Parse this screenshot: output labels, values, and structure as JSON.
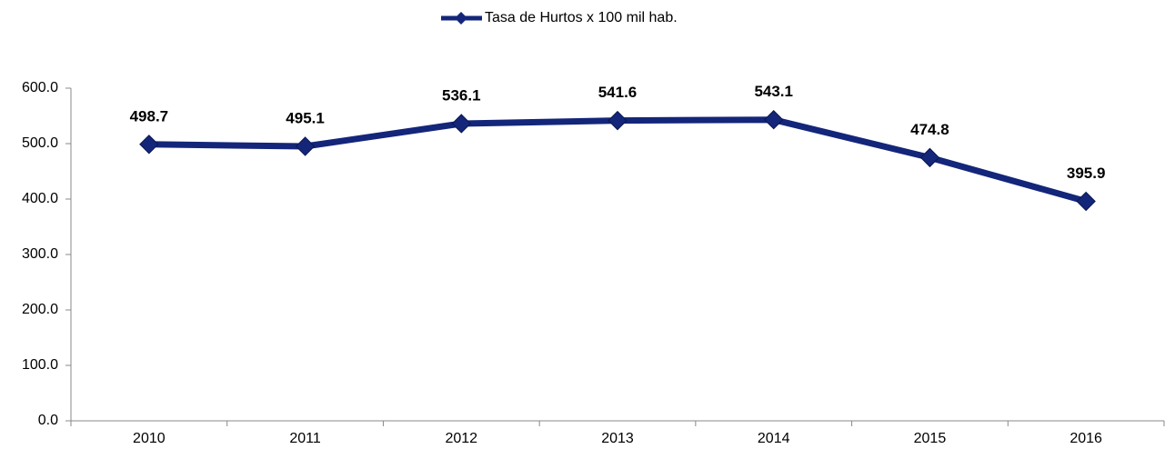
{
  "chart_data": {
    "type": "line",
    "categories": [
      "2010",
      "2011",
      "2012",
      "2013",
      "2014",
      "2015",
      "2016"
    ],
    "series": [
      {
        "name": "Tasa de Hurtos x 100 mil hab.",
        "color": "#13267a",
        "values": [
          498.7,
          495.1,
          536.1,
          541.6,
          543.1,
          474.8,
          395.9
        ]
      }
    ],
    "ylim": [
      0,
      600
    ],
    "yticks": [
      {
        "value": 0,
        "label": "0.0"
      },
      {
        "value": 100,
        "label": "100.0"
      },
      {
        "value": 200,
        "label": "200.0"
      },
      {
        "value": 300,
        "label": "300.0"
      },
      {
        "value": 400,
        "label": "400.0"
      },
      {
        "value": 500,
        "label": "500.0"
      },
      {
        "value": 600,
        "label": "600.0"
      }
    ],
    "legend": "top",
    "grid": false
  }
}
